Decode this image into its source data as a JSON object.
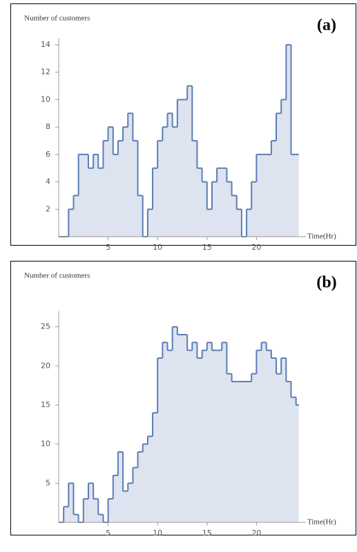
{
  "chart_data": [
    {
      "type": "step-area",
      "panel_label": "(a)",
      "y_label": "Number of customers",
      "x_label": "Time(Hr)",
      "x": [
        0,
        0.5,
        1,
        1.5,
        2,
        2.5,
        3,
        3.5,
        4,
        4.5,
        5,
        5.5,
        6,
        6.5,
        7,
        7.5,
        8,
        8.5,
        9,
        9.5,
        10,
        10.5,
        11,
        11.5,
        12,
        12.5,
        13,
        13.5,
        14,
        14.5,
        15,
        15.5,
        16,
        16.5,
        17,
        17.5,
        18,
        18.5,
        19,
        19.5,
        20,
        20.5,
        21,
        21.5,
        22,
        22.5,
        23,
        23.5,
        24
      ],
      "series": [
        {
          "name": "customers",
          "color": "#5a7db5",
          "values": [
            0,
            0,
            2,
            3,
            6,
            6,
            5,
            6,
            5,
            7,
            8,
            6,
            7,
            8,
            9,
            7,
            3,
            0,
            2,
            5,
            7,
            8,
            9,
            8,
            10,
            10,
            11,
            7,
            5,
            4,
            2,
            4,
            5,
            5,
            4,
            3,
            2,
            0,
            2,
            4,
            6,
            6,
            6,
            7,
            9,
            10,
            14,
            6,
            6
          ]
        }
      ],
      "xlim": [
        0,
        25
      ],
      "ylim": [
        0,
        14.5
      ],
      "xticks": [
        5,
        10,
        15,
        20
      ],
      "yticks": [
        2,
        4,
        6,
        8,
        10,
        12,
        14
      ]
    },
    {
      "type": "step-area",
      "panel_label": "(b)",
      "y_label": "Number of customers",
      "x_label": "Time(Hr)",
      "x": [
        0,
        0.5,
        1,
        1.5,
        2,
        2.5,
        3,
        3.5,
        4,
        4.5,
        5,
        5.5,
        6,
        6.5,
        7,
        7.5,
        8,
        8.5,
        9,
        9.5,
        10,
        10.5,
        11,
        11.5,
        12,
        12.5,
        13,
        13.5,
        14,
        14.5,
        15,
        15.5,
        16,
        16.5,
        17,
        17.5,
        18,
        18.5,
        19,
        19.5,
        20,
        20.5,
        21,
        21.5,
        22,
        22.5,
        23,
        23.5,
        24
      ],
      "series": [
        {
          "name": "customers",
          "color": "#5a7db5",
          "values": [
            0,
            2,
            5,
            1,
            0,
            3,
            5,
            3,
            1,
            0,
            3,
            6,
            9,
            4,
            5,
            7,
            9,
            10,
            11,
            14,
            21,
            23,
            22,
            25,
            24,
            24,
            22,
            23,
            21,
            22,
            23,
            22,
            22,
            23,
            19,
            18,
            18,
            18,
            18,
            19,
            22,
            23,
            22,
            21,
            19,
            21,
            18,
            16,
            15
          ]
        }
      ],
      "xlim": [
        0,
        25
      ],
      "ylim": [
        0,
        27
      ],
      "xticks": [
        5,
        10,
        15,
        20
      ],
      "yticks": [
        5,
        10,
        15,
        20,
        25
      ]
    }
  ]
}
